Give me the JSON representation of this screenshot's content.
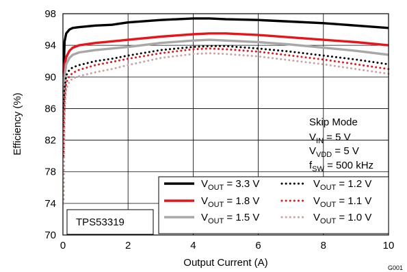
{
  "chart_data": {
    "type": "line",
    "xlabel": "Output Current (A)",
    "ylabel": "Efficiency (%)",
    "xlim": [
      0,
      10
    ],
    "ylim": [
      70,
      98
    ],
    "x_ticks": [
      0,
      2,
      4,
      6,
      8,
      10
    ],
    "y_ticks": [
      70,
      74,
      78,
      82,
      86,
      90,
      94,
      98
    ],
    "grid": true,
    "legend_position": "bottom-right",
    "annotation": {
      "mode": "Skip Mode",
      "vin": {
        "base": "V",
        "sub": "IN",
        "rest": " = 5 V"
      },
      "vdd": {
        "base": "V",
        "sub": "VDD",
        "rest": " = 5 V"
      },
      "fsw": {
        "base": "f",
        "sub": "SW",
        "rest": " = 500 kHz"
      }
    },
    "part_label": "TPS53319",
    "figure_id": "G001",
    "series": [
      {
        "name": "V_OUT = 3.3 V",
        "label": {
          "base": "V",
          "sub": "OUT",
          "rest": " = 3.3 V"
        },
        "color": "#000000",
        "style": "solid",
        "x": [
          0.02,
          0.05,
          0.1,
          0.2,
          0.3,
          0.5,
          1,
          1.5,
          2,
          3,
          4,
          4.5,
          5,
          6,
          7,
          8,
          9,
          10
        ],
        "y": [
          90.5,
          94.5,
          95.5,
          96,
          96.2,
          96.3,
          96.5,
          96.6,
          96.9,
          97.2,
          97.4,
          97.4,
          97.3,
          97.2,
          97,
          96.8,
          96.5,
          96.2
        ]
      },
      {
        "name": "V_OUT = 1.8 V",
        "label": {
          "base": "V",
          "sub": "OUT",
          "rest": " = 1.8 V"
        },
        "color": "#e8141a",
        "style": "solid",
        "x": [
          0.02,
          0.05,
          0.1,
          0.2,
          0.3,
          0.5,
          1,
          1.5,
          2,
          3,
          4,
          4.5,
          5,
          6,
          7,
          8,
          9,
          10
        ],
        "y": [
          88,
          91.5,
          92.5,
          93.3,
          93.7,
          94,
          94.3,
          94.5,
          94.7,
          95.1,
          95.4,
          95.5,
          95.5,
          95.3,
          95,
          94.7,
          94.4,
          94
        ]
      },
      {
        "name": "V_OUT = 1.5 V",
        "label": {
          "base": "V",
          "sub": "OUT",
          "rest": " = 1.5 V"
        },
        "color": "#a8a8a8",
        "style": "solid",
        "x": [
          0.02,
          0.05,
          0.1,
          0.2,
          0.3,
          0.5,
          1,
          1.5,
          2,
          3,
          4,
          4.5,
          5,
          6,
          7,
          8,
          9,
          10
        ],
        "y": [
          86,
          90,
          91.6,
          92.4,
          92.8,
          93.1,
          93.4,
          93.6,
          93.8,
          94.3,
          94.6,
          94.7,
          94.6,
          94.4,
          94.1,
          93.7,
          93.3,
          92.8
        ]
      },
      {
        "name": "V_OUT = 1.2 V",
        "label": {
          "base": "V",
          "sub": "OUT",
          "rest": " = 1.2 V"
        },
        "color": "#000000",
        "style": "dotted",
        "x": [
          0.02,
          0.05,
          0.1,
          0.2,
          0.3,
          0.5,
          1,
          1.5,
          2,
          3,
          4,
          4.5,
          5,
          6,
          7,
          8,
          9,
          10
        ],
        "y": [
          84,
          88.5,
          90.2,
          90.9,
          91.2,
          91.5,
          92,
          92.3,
          92.7,
          93.4,
          93.8,
          93.9,
          93.9,
          93.6,
          93.2,
          92.7,
          92.2,
          91.6
        ]
      },
      {
        "name": "V_OUT = 1.1 V",
        "label": {
          "base": "V",
          "sub": "OUT",
          "rest": " = 1.1 V"
        },
        "color": "#e8141a",
        "style": "dotted",
        "x": [
          0.02,
          0.05,
          0.1,
          0.2,
          0.3,
          0.5,
          1,
          1.5,
          2,
          3,
          4,
          4.5,
          5,
          6,
          7,
          8,
          9,
          10
        ],
        "y": [
          80,
          87,
          89.3,
          90.1,
          90.5,
          90.9,
          91.5,
          91.9,
          92.3,
          93,
          93.5,
          93.6,
          93.5,
          93.2,
          92.7,
          92.2,
          91.6,
          91
        ]
      },
      {
        "name": "V_OUT = 1.0 V",
        "label": {
          "base": "V",
          "sub": "OUT",
          "rest": " = 1.0 V"
        },
        "color": "#c9a39f",
        "style": "dotted",
        "x": [
          0.02,
          0.05,
          0.1,
          0.2,
          0.3,
          0.5,
          1,
          1.5,
          2,
          3,
          4,
          4.5,
          5,
          6,
          7,
          8,
          9,
          10
        ],
        "y": [
          74,
          85.5,
          88.5,
          89.4,
          89.8,
          90.1,
          90.6,
          91,
          91.5,
          92.4,
          92.9,
          93,
          92.9,
          92.6,
          92.1,
          91.6,
          91,
          90.4
        ]
      }
    ]
  }
}
